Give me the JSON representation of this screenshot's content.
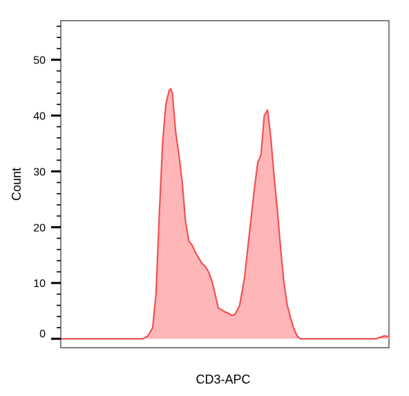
{
  "chart_data": {
    "type": "area",
    "title": "",
    "xlabel": "CD3-APC",
    "ylabel": "Count",
    "xlim": [
      0,
      1
    ],
    "ylim": [
      -1.6,
      57
    ],
    "yticks": [
      0,
      10,
      20,
      30,
      40,
      50
    ],
    "ytick_labels": [
      "0",
      "10",
      "20",
      "30",
      "40",
      "50"
    ],
    "minor_tick_step": 2,
    "grid": false,
    "legend": "none",
    "colors": {
      "line": "#f25050",
      "fill": "#ffb6b8"
    },
    "series": [
      {
        "x": [
          0,
          0.25,
          0.265,
          0.28,
          0.29,
          0.3,
          0.31,
          0.32,
          0.33,
          0.335,
          0.34,
          0.35,
          0.36,
          0.37,
          0.38,
          0.39,
          0.4,
          0.41,
          0.42,
          0.43,
          0.44,
          0.45,
          0.46,
          0.47,
          0.48,
          0.49,
          0.5,
          0.51,
          0.52,
          0.53,
          0.545,
          0.56,
          0.575,
          0.59,
          0.6,
          0.61,
          0.62,
          0.63,
          0.64,
          0.65,
          0.66,
          0.67,
          0.68,
          0.69,
          0.7,
          0.71,
          0.72,
          0.73,
          0.74,
          0.75,
          0.76,
          0.77,
          0.78,
          0.79,
          0.8,
          0.81,
          0.82,
          0.84,
          0.87,
          0.9,
          0.93,
          0.96,
          0.975,
          0.985,
          1.0
        ],
        "y": [
          0,
          0,
          0.5,
          2,
          8,
          22,
          35,
          42,
          44.5,
          44.8,
          44,
          37,
          33,
          28,
          21,
          17.5,
          16.8,
          15.5,
          14.5,
          13.5,
          13,
          12,
          10.5,
          8,
          5.5,
          5.2,
          4.8,
          4.6,
          4.2,
          4.3,
          6,
          11,
          19,
          27,
          31.5,
          33,
          40,
          41,
          36,
          29,
          23,
          16,
          10,
          6,
          3.8,
          1.8,
          0.5,
          0,
          0,
          0,
          0,
          0,
          0,
          0,
          0,
          0,
          0,
          0,
          0,
          0,
          0,
          0,
          0.3,
          0.5,
          0.4
        ]
      }
    ]
  }
}
